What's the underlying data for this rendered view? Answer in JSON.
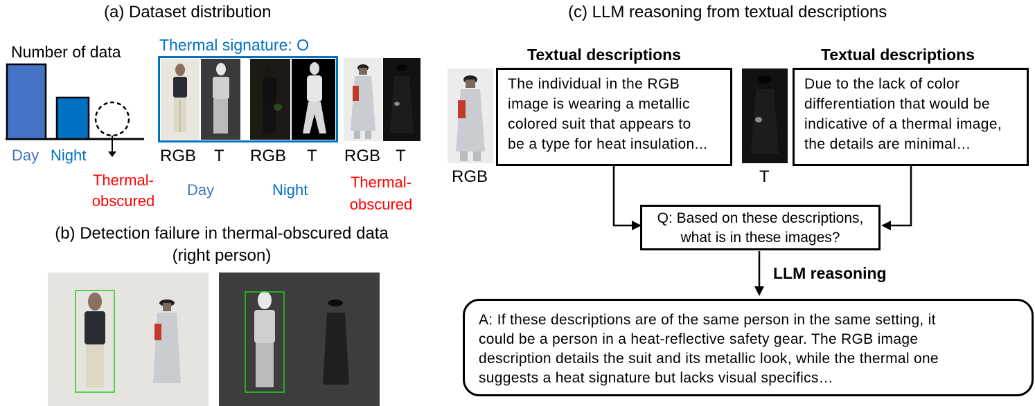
{
  "panel_a": {
    "title": "(a) Dataset distribution",
    "axis_label": "Number of data",
    "bar_labels": [
      "Day",
      "Night",
      "Thermal-\nobscured"
    ],
    "thermal_signature": "Thermal signature: O",
    "pair_labels": [
      "RGB",
      "T",
      "RGB",
      "T",
      "RGB",
      "T"
    ],
    "group_labels": [
      "Day",
      "Night",
      "Thermal-\nobscured"
    ],
    "colors": {
      "day": "#4472C4",
      "night": "#0070C0",
      "obscured": "#FF0000"
    },
    "chart_data": {
      "type": "bar",
      "categories": [
        "Day",
        "Night",
        "Thermal-obscured"
      ],
      "values": [
        1.0,
        0.55,
        0.5
      ],
      "ylabel": "Number of data"
    }
  },
  "panel_b": {
    "title_line1": "(b) Detection failure in thermal-obscured data",
    "title_line2": "(right person)"
  },
  "panel_c": {
    "title": "(c) LLM reasoning from textual descriptions",
    "desc_header_rgb": "Textual descriptions",
    "desc_header_t": "Textual descriptions",
    "rgb_label": "RGB",
    "t_label": "T",
    "rgb_text": "The individual in the RGB\nimage is wearing a metallic\ncolored suit that appears to\nbe a type for heat insulation...",
    "t_text": "Due to the lack of color\ndifferentiation that would be\nindicative of a thermal image,\nthe details are minimal…",
    "question": "Q: Based on these descriptions,\nwhat is in these images?",
    "reasoning_label": "LLM reasoning",
    "answer": "A: If these descriptions are of the same person in the same setting, it\ncould be a person in a heat-reflective safety gear. The RGB image\ndescription details the suit and its metallic look, while the thermal one\nsuggests a heat signature but lacks visual specifics…"
  }
}
